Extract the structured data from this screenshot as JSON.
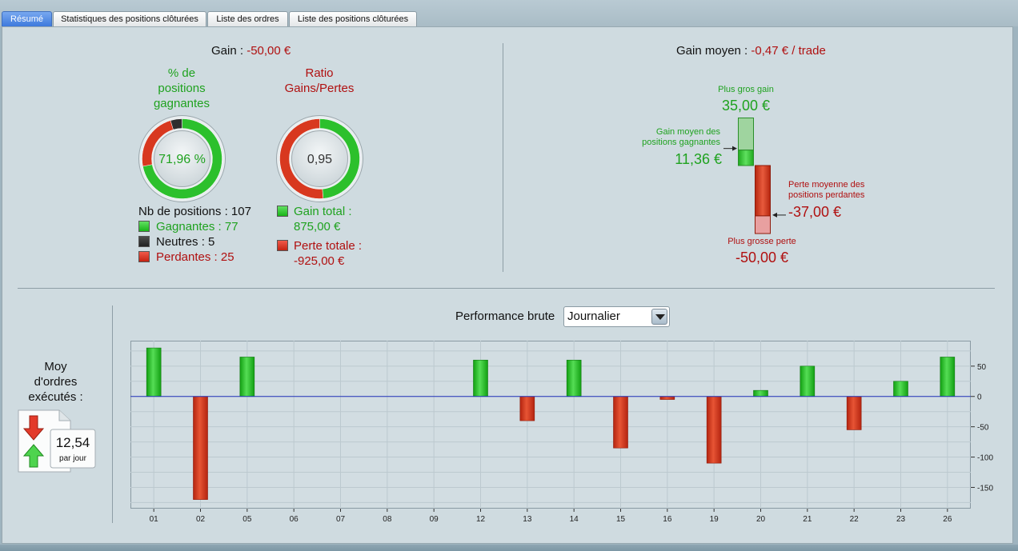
{
  "tabs": [
    {
      "label": "Résumé",
      "active": true
    },
    {
      "label": "Statistiques des positions clôturées",
      "active": false
    },
    {
      "label": "Liste des ordres",
      "active": false
    },
    {
      "label": "Liste des positions clôturées",
      "active": false
    }
  ],
  "summary": {
    "gain_label": "Gain :",
    "gain_value": "-50,00 €",
    "pct_title_1": "% de",
    "pct_title_2": "positions",
    "pct_title_3": "gagnantes",
    "pct_value": "71,96 %",
    "pct_fraction": 0.7196,
    "ratio_title_1": "Ratio",
    "ratio_title_2": "Gains/Pertes",
    "ratio_value": "0,95",
    "nb_positions": "Nb de positions : 107",
    "gagnantes": "Gagnantes : 77",
    "neutres": "Neutres : 5",
    "perdantes": "Perdantes : 25",
    "gain_total_label": "Gain total :",
    "gain_total_value": "875,00 €",
    "perte_totale_label": "Perte totale :",
    "perte_totale_value": "-925,00 €",
    "wins": 77,
    "neutral": 5,
    "losses": 25,
    "gain_total_num": 875,
    "perte_totale_num": 925
  },
  "average": {
    "label": "Gain moyen :",
    "value": "-0,47 € / trade",
    "max_gain_label": "Plus gros gain",
    "max_gain_value": "35,00 €",
    "avg_win_label_1": "Gain moyen des",
    "avg_win_label_2": "positions gagnantes",
    "avg_win_value": "11,36 €",
    "avg_loss_label_1": "Perte moyenne des",
    "avg_loss_label_2": "positions perdantes",
    "avg_loss_value": "-37,00 €",
    "max_loss_label": "Plus grosse perte",
    "max_loss_value": "-50,00 €",
    "max_gain_num": 35,
    "avg_win_num": 11.36,
    "avg_loss_num": -37,
    "max_loss_num": -50
  },
  "orders": {
    "label_1": "Moy",
    "label_2": "d'ordres",
    "label_3": "exécutés :",
    "value": "12,54",
    "unit": "par jour"
  },
  "performance": {
    "label": "Performance brute",
    "period": "Journalier"
  },
  "colors": {
    "green": "#1fa21f",
    "red": "#b01010",
    "bar_green": "#2ec52e",
    "bar_red": "#c83a1c",
    "zero_line": "#2233bb"
  },
  "chart_data": {
    "type": "bar",
    "categories": [
      "01",
      "02",
      "05",
      "06",
      "07",
      "08",
      "09",
      "12",
      "13",
      "14",
      "15",
      "16",
      "19",
      "20",
      "21",
      "22",
      "23",
      "26"
    ],
    "values": [
      80,
      -170,
      65,
      0,
      0,
      0,
      0,
      60,
      -40,
      60,
      -85,
      -5,
      -110,
      10,
      50,
      -55,
      25,
      65
    ],
    "ylim": [
      -185,
      92
    ],
    "yticks": [
      50,
      0,
      -50,
      -100,
      -150
    ],
    "ytick_labels": [
      "50",
      "0",
      "-50",
      "-100",
      "-150"
    ],
    "grid": true
  }
}
